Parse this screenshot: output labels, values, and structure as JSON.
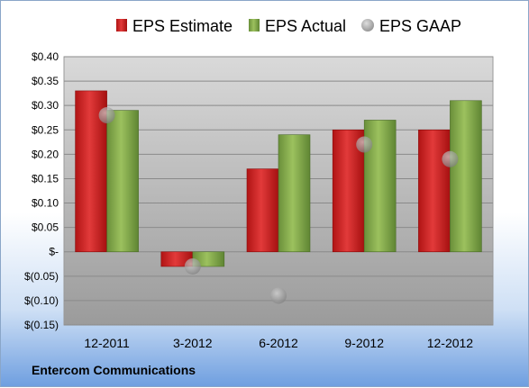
{
  "company": "Entercom Communications",
  "chart_data": {
    "type": "bar",
    "categories": [
      "12-2011",
      "3-2012",
      "6-2012",
      "9-2012",
      "12-2012"
    ],
    "series": [
      {
        "name": "EPS Estimate",
        "type": "bar",
        "color": "#cc1f1f",
        "values": [
          0.33,
          -0.03,
          0.17,
          0.25,
          0.25
        ]
      },
      {
        "name": "EPS Actual",
        "type": "bar",
        "color": "#7fa34a",
        "values": [
          0.29,
          -0.03,
          0.24,
          0.27,
          0.31
        ]
      },
      {
        "name": "EPS GAAP",
        "type": "scatter",
        "color": "#9a9a9a",
        "values": [
          0.28,
          -0.03,
          -0.09,
          0.22,
          0.19
        ]
      }
    ],
    "ylim": [
      -0.15,
      0.4
    ],
    "yticks": [
      {
        "value": 0.4,
        "label": "$0.40"
      },
      {
        "value": 0.35,
        "label": "$0.35"
      },
      {
        "value": 0.3,
        "label": "$0.30"
      },
      {
        "value": 0.25,
        "label": "$0.25"
      },
      {
        "value": 0.2,
        "label": "$0.20"
      },
      {
        "value": 0.15,
        "label": "$0.15"
      },
      {
        "value": 0.1,
        "label": "$0.10"
      },
      {
        "value": 0.05,
        "label": "$0.05"
      },
      {
        "value": 0.0,
        "label": "$-"
      },
      {
        "value": -0.05,
        "label": "$(0.05)"
      },
      {
        "value": -0.1,
        "label": "$(0.10)"
      },
      {
        "value": -0.15,
        "label": "$(0.15)"
      }
    ],
    "grid": true,
    "legend_position": "top"
  }
}
